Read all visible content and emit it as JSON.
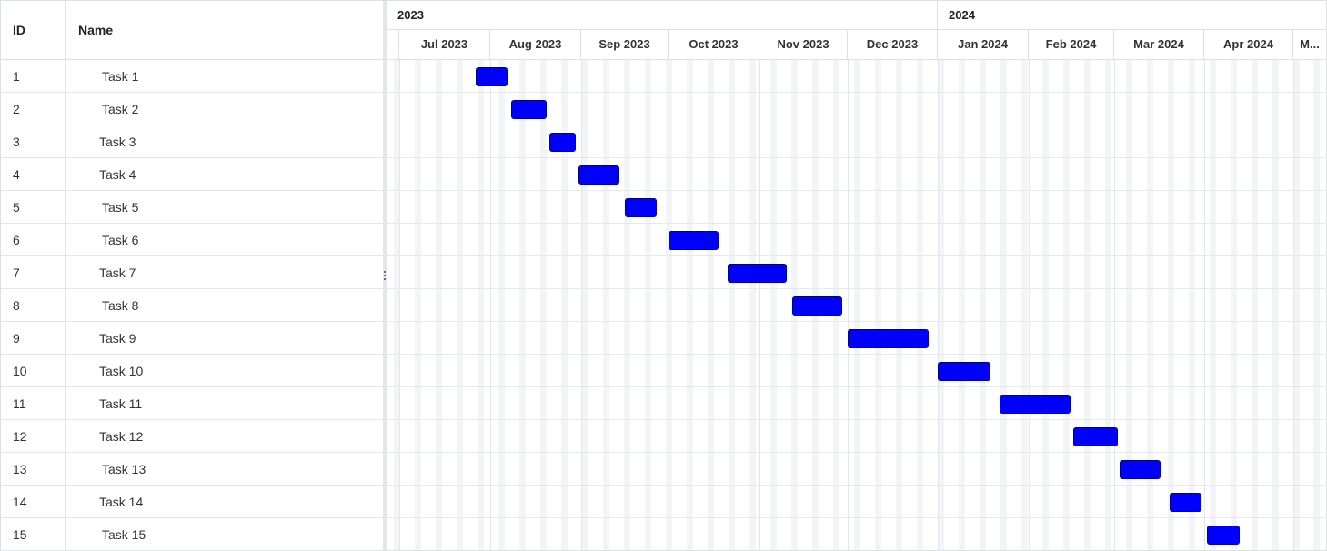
{
  "grid": {
    "columns": {
      "id": "ID",
      "name": "Name"
    },
    "rows": [
      {
        "id": "1",
        "name": "Task 1"
      },
      {
        "id": "2",
        "name": "Task 2"
      },
      {
        "id": "3",
        "name": "Task 3"
      },
      {
        "id": "4",
        "name": "Task 4"
      },
      {
        "id": "5",
        "name": "Task 5"
      },
      {
        "id": "6",
        "name": "Task 6"
      },
      {
        "id": "7",
        "name": "Task 7"
      },
      {
        "id": "8",
        "name": "Task 8"
      },
      {
        "id": "9",
        "name": "Task 9"
      },
      {
        "id": "10",
        "name": "Task 10"
      },
      {
        "id": "11",
        "name": "Task 11"
      },
      {
        "id": "12",
        "name": "Task 12"
      },
      {
        "id": "13",
        "name": "Task 13"
      },
      {
        "id": "14",
        "name": "Task 14"
      },
      {
        "id": "15",
        "name": "Task 15"
      }
    ]
  },
  "splitter": {
    "icon": "vertical-ellipsis-icon"
  },
  "timeline": {
    "years": [
      "2023",
      "2024"
    ],
    "months": [
      "Jul 2023",
      "Aug 2023",
      "Sep 2023",
      "Oct 2023",
      "Nov 2023",
      "Dec 2023",
      "Jan 2024",
      "Feb 2024",
      "Mar 2024",
      "Apr 2024",
      "M..."
    ]
  },
  "tasks": [
    {
      "name": "Task 1",
      "start": "2023-07-27",
      "end": "2023-08-07"
    },
    {
      "name": "Task 2",
      "start": "2023-08-08",
      "end": "2023-08-20"
    },
    {
      "name": "Task 3",
      "start": "2023-08-21",
      "end": "2023-08-30"
    },
    {
      "name": "Task 4",
      "start": "2023-08-31",
      "end": "2023-09-14"
    },
    {
      "name": "Task 5",
      "start": "2023-09-16",
      "end": "2023-09-27"
    },
    {
      "name": "Task 6",
      "start": "2023-10-01",
      "end": "2023-10-18"
    },
    {
      "name": "Task 7",
      "start": "2023-10-21",
      "end": "2023-11-10"
    },
    {
      "name": "Task 8",
      "start": "2023-11-12",
      "end": "2023-11-29"
    },
    {
      "name": "Task 9",
      "start": "2023-12-01",
      "end": "2023-12-29"
    },
    {
      "name": "Task 10",
      "start": "2024-01-01",
      "end": "2024-01-19"
    },
    {
      "name": "Task 11",
      "start": "2024-01-22",
      "end": "2024-02-15"
    },
    {
      "name": "Task 12",
      "start": "2024-02-16",
      "end": "2024-03-02"
    },
    {
      "name": "Task 13",
      "start": "2024-03-03",
      "end": "2024-03-17"
    },
    {
      "name": "Task 14",
      "start": "2024-03-20",
      "end": "2024-03-31"
    },
    {
      "name": "Task 15",
      "start": "2024-04-02",
      "end": "2024-04-13"
    }
  ],
  "colors": {
    "bar_fill": "#0000ff",
    "bar_border": "#00008b",
    "grid_line": "#e3e5e8",
    "weekend_stripe": "#f2f4f6"
  }
}
